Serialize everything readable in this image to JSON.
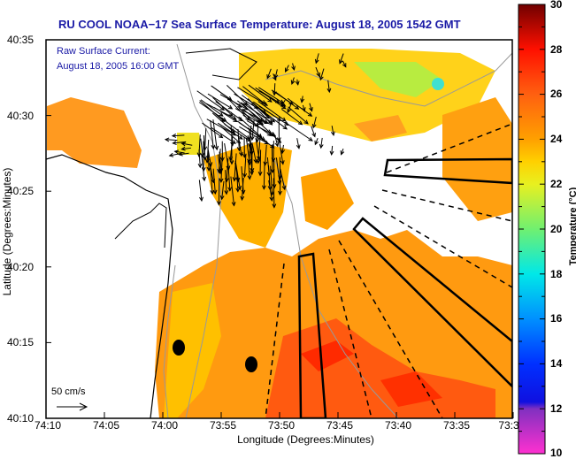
{
  "title": "RU COOL  NOAA−17  Sea Surface Temperature:  August 18, 2005 1542 GMT",
  "annotation": {
    "line1": "Raw Surface Current:",
    "line2": "August 18, 2005 16:00 GMT"
  },
  "scale": {
    "label": "50 cm/s"
  },
  "axes": {
    "xlabel": "Longitude (Degrees:Minutes)",
    "ylabel": "Latitude (Degrees:Minutes)",
    "xticks": [
      "74:10",
      "74:05",
      "74:00",
      "73:55",
      "73:50",
      "73:45",
      "73:40",
      "73:35",
      "73:3"
    ],
    "yticks": [
      "40:35",
      "40:30",
      "40:25",
      "40:20",
      "40:15",
      "40:10"
    ]
  },
  "colorbar": {
    "label": "Temperature (°C)",
    "ticks": [
      "30",
      "28",
      "26",
      "24",
      "22",
      "20",
      "18",
      "16",
      "14",
      "12",
      "10"
    ],
    "range": [
      10,
      30
    ],
    "stops": [
      {
        "value": 10,
        "color": "#ff30d0"
      },
      {
        "value": 12,
        "color": "#8030c0"
      },
      {
        "value": 12.3,
        "color": "#1010e0"
      },
      {
        "value": 14,
        "color": "#0030ff"
      },
      {
        "value": 16,
        "color": "#0090ff"
      },
      {
        "value": 18,
        "color": "#00e8e8"
      },
      {
        "value": 20,
        "color": "#70f070"
      },
      {
        "value": 22,
        "color": "#e8f020"
      },
      {
        "value": 23,
        "color": "#ffd000"
      },
      {
        "value": 24,
        "color": "#ffa000"
      },
      {
        "value": 26,
        "color": "#ff6010"
      },
      {
        "value": 28,
        "color": "#ff1000"
      },
      {
        "value": 30,
        "color": "#700000"
      }
    ]
  }
}
